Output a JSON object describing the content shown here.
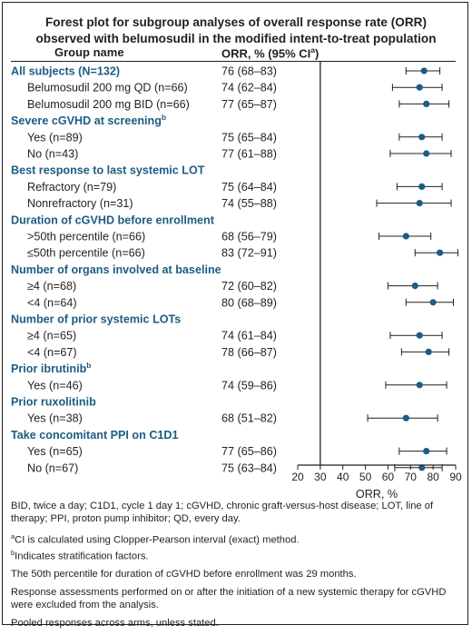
{
  "title": {
    "line1": "Forest plot for subgroup analyses of overall response rate (ORR)",
    "line2": "observed with belumosudil in the modified intent-to-treat population"
  },
  "header": {
    "group": "Group name",
    "orr": "ORR, % (95% CI",
    "orr_sup": "a",
    "orr_close": ")"
  },
  "chart_data": {
    "type": "forest",
    "xlabel": "ORR, %",
    "xlim": [
      20,
      90
    ],
    "xticks": [
      20,
      30,
      40,
      50,
      60,
      70,
      80,
      90
    ],
    "reference_line": 30,
    "grid": false,
    "colors": {
      "marker": "#1d5c83",
      "header_text": "#1d5c83",
      "text": "#231f20"
    },
    "rows": [
      {
        "type": "header",
        "label": "All subjects (N=132)",
        "sup": "",
        "orr": "76 (68–83)",
        "estimate": 76,
        "ci": [
          68,
          83
        ]
      },
      {
        "type": "item",
        "label": "Belumosudil 200 mg QD (n=66)",
        "orr": "74 (62–84)",
        "estimate": 74,
        "ci": [
          62,
          84
        ]
      },
      {
        "type": "item",
        "label": "Belumosudil 200 mg BID (n=66)",
        "orr": "77 (65–87)",
        "estimate": 77,
        "ci": [
          65,
          87
        ]
      },
      {
        "type": "header",
        "label": "Severe cGVHD at screening",
        "sup": "b"
      },
      {
        "type": "item",
        "label": "Yes (n=89)",
        "orr": "75 (65–84)",
        "estimate": 75,
        "ci": [
          65,
          84
        ]
      },
      {
        "type": "item",
        "label": "No (n=43)",
        "orr": "77 (61–88)",
        "estimate": 77,
        "ci": [
          61,
          88
        ]
      },
      {
        "type": "header",
        "label": "Best response to last systemic LOT",
        "sup": ""
      },
      {
        "type": "item",
        "label": "Refractory (n=79)",
        "orr": "75 (64–84)",
        "estimate": 75,
        "ci": [
          64,
          84
        ]
      },
      {
        "type": "item",
        "label": "Nonrefractory (n=31)",
        "orr": "74 (55–88)",
        "estimate": 74,
        "ci": [
          55,
          88
        ]
      },
      {
        "type": "header",
        "label": "Duration of cGVHD before enrollment",
        "sup": ""
      },
      {
        "type": "item",
        "label": ">50th percentile (n=66)",
        "orr": "68 (56–79)",
        "estimate": 68,
        "ci": [
          56,
          79
        ]
      },
      {
        "type": "item",
        "label": "≤50th percentile (n=66)",
        "orr": "83 (72–91)",
        "estimate": 83,
        "ci": [
          72,
          91
        ]
      },
      {
        "type": "header",
        "label": "Number of organs involved at baseline",
        "sup": ""
      },
      {
        "type": "item",
        "label": "≥4 (n=68)",
        "orr": "72 (60–82)",
        "estimate": 72,
        "ci": [
          60,
          82
        ]
      },
      {
        "type": "item",
        "label": "<4 (n=64)",
        "orr": "80 (68–89)",
        "estimate": 80,
        "ci": [
          68,
          89
        ]
      },
      {
        "type": "header",
        "label": "Number of prior systemic LOTs",
        "sup": ""
      },
      {
        "type": "item",
        "label": "≥4 (n=65)",
        "orr": "74 (61–84)",
        "estimate": 74,
        "ci": [
          61,
          84
        ]
      },
      {
        "type": "item",
        "label": "<4 (n=67)",
        "orr": "78 (66–87)",
        "estimate": 78,
        "ci": [
          66,
          87
        ]
      },
      {
        "type": "header",
        "label": "Prior ibrutinib",
        "sup": "b"
      },
      {
        "type": "item",
        "label": "Yes (n=46)",
        "orr": "74 (59–86)",
        "estimate": 74,
        "ci": [
          59,
          86
        ]
      },
      {
        "type": "header",
        "label": "Prior ruxolitinib",
        "sup": ""
      },
      {
        "type": "item",
        "label": "Yes (n=38)",
        "orr": "68 (51–82)",
        "estimate": 68,
        "ci": [
          51,
          82
        ]
      },
      {
        "type": "header",
        "label": "Take concomitant PPI on C1D1",
        "sup": ""
      },
      {
        "type": "item",
        "label": "Yes (n=65)",
        "orr": "77 (65–86)",
        "estimate": 77,
        "ci": [
          65,
          86
        ]
      },
      {
        "type": "item",
        "label": "No (n=67)",
        "orr": "75 (63–84)",
        "estimate": 75,
        "ci": [
          63,
          84
        ]
      }
    ]
  },
  "footnotes": {
    "abbreviations": "BID, twice a day; C1D1, cycle 1 day 1; cGVHD, chronic graft-versus-host disease; LOT, line of therapy; PPI, proton pump inhibitor; QD, every day.",
    "a_mark": "a",
    "a_text": "CI is calculated using Clopper-Pearson interval (exact) method.",
    "b_mark": "b",
    "b_text": "Indicates stratification factors.",
    "percentile_note": "The 50th percentile for duration of cGVHD before enrollment was 29 months.",
    "response_note": "Response assessments performed on or after the initiation of a new systemic therapy for cGVHD were excluded from the analysis.",
    "pooled_note": "Pooled responses across arms, unless stated."
  }
}
